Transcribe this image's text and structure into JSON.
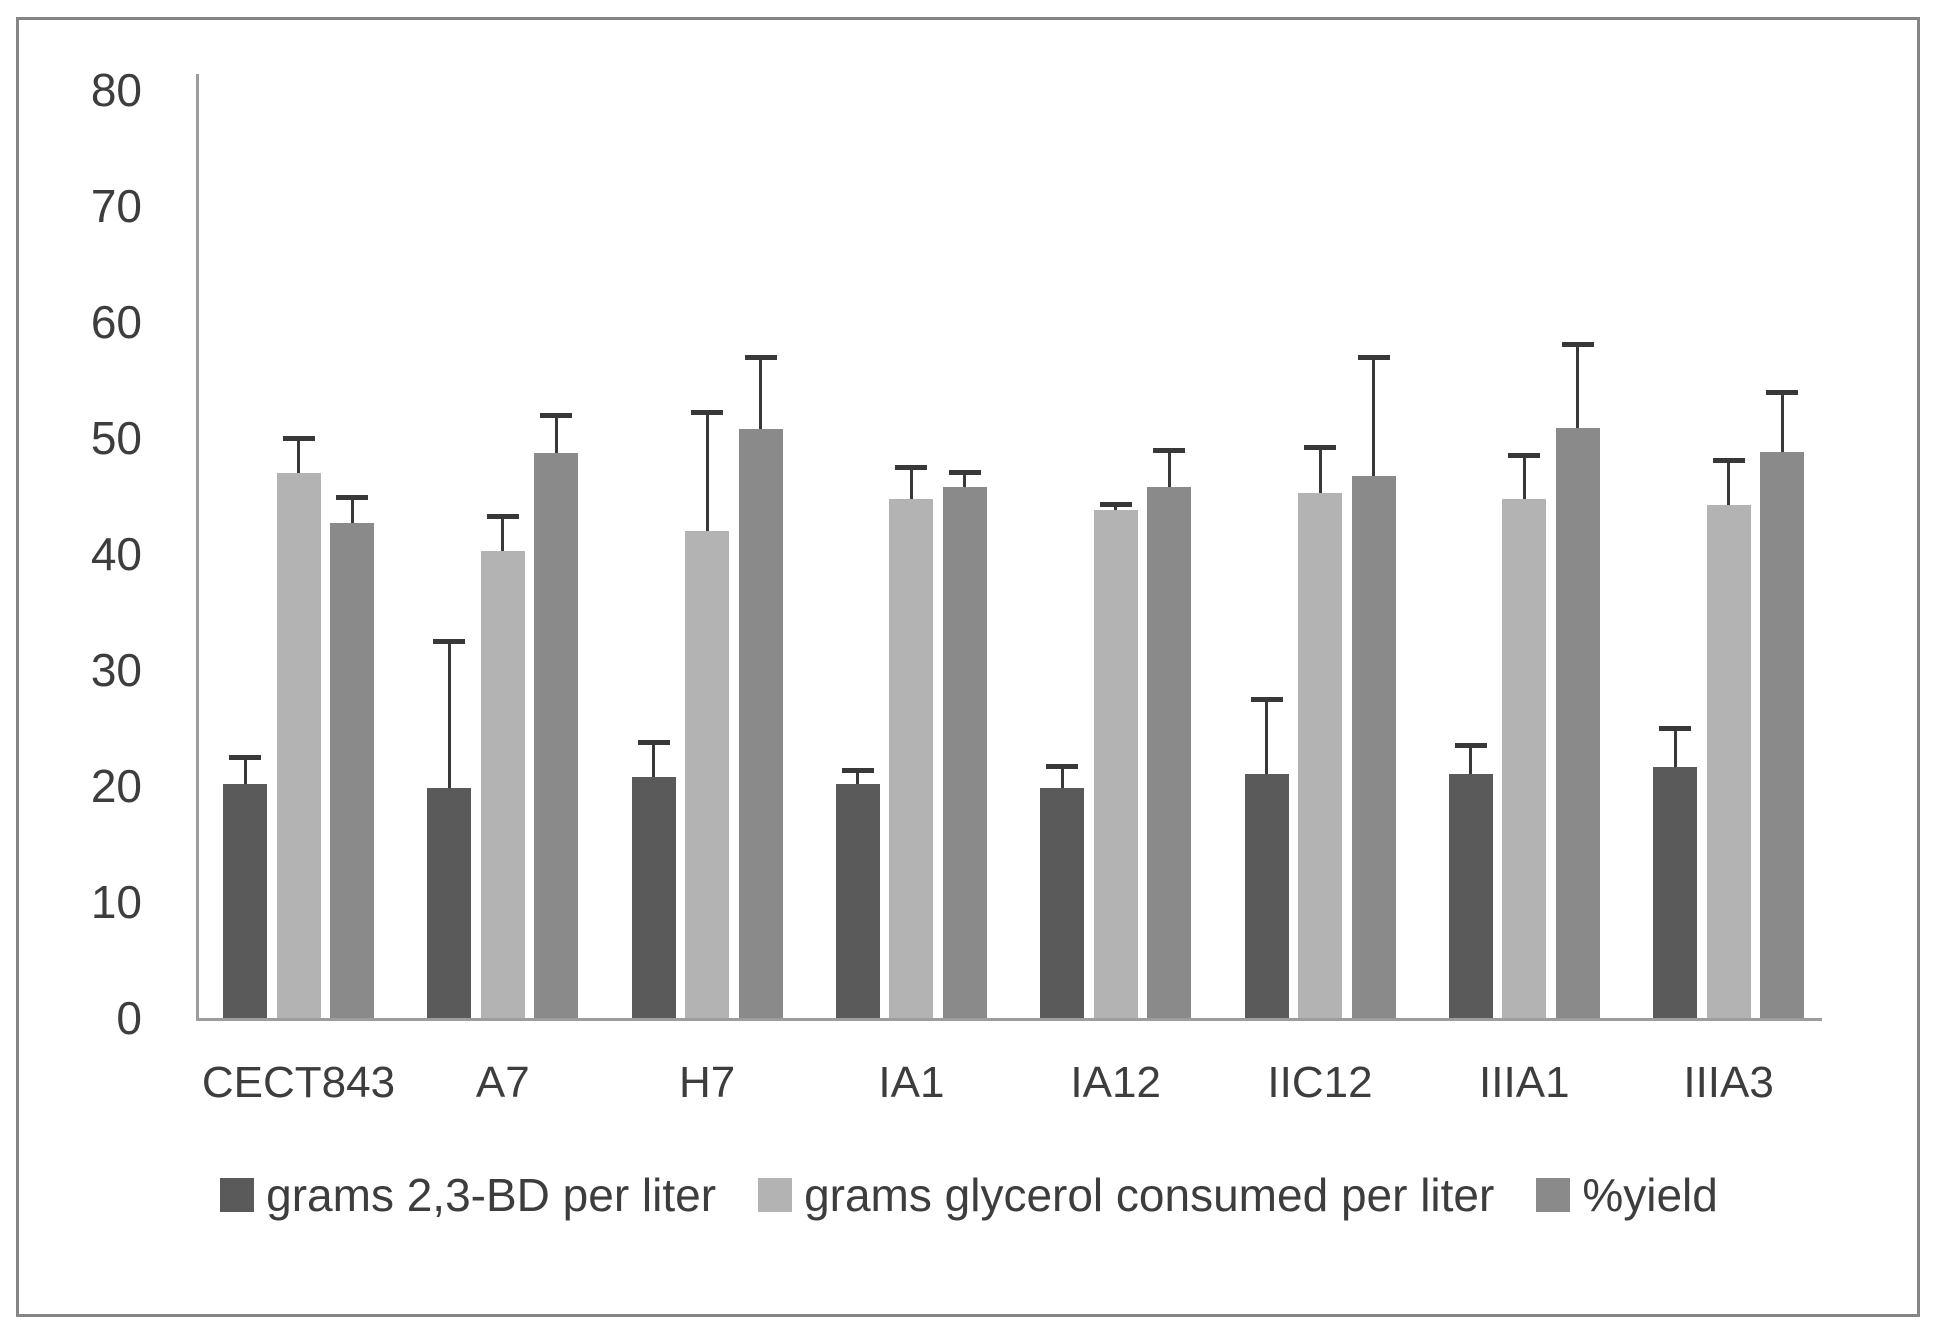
{
  "chart_data": {
    "type": "bar",
    "title": "",
    "xlabel": "",
    "ylabel": "",
    "categories": [
      "CECT843",
      "A7",
      "H7",
      "IA1",
      "IA12",
      "IIC12",
      "IIIA1",
      "IIIA3"
    ],
    "series": [
      {
        "name": "grams 2,3-BD per liter",
        "color": "#5a5a5a",
        "values": [
          20.2,
          19.8,
          20.8,
          20.2,
          19.8,
          21.0,
          21.0,
          21.6
        ],
        "errors_plus": [
          2.3,
          12.7,
          3.0,
          1.2,
          1.9,
          6.5,
          2.5,
          3.4
        ]
      },
      {
        "name": "grams glycerol consumed per liter",
        "color": "#b3b3b3",
        "values": [
          47.0,
          40.3,
          42.0,
          44.7,
          43.8,
          45.3,
          44.7,
          44.2
        ],
        "errors_plus": [
          3.0,
          3.0,
          10.2,
          2.8,
          0.5,
          3.9,
          3.8,
          3.9
        ]
      },
      {
        "name": "%yield",
        "color": "#8a8a8a",
        "values": [
          42.7,
          48.7,
          50.8,
          45.8,
          45.8,
          46.7,
          50.9,
          48.8
        ],
        "errors_plus": [
          2.2,
          3.3,
          6.2,
          1.3,
          3.2,
          10.3,
          7.2,
          5.2
        ]
      }
    ],
    "ylim": [
      0,
      80
    ],
    "yticks": [
      0,
      10,
      20,
      30,
      40,
      50,
      60,
      70,
      80
    ],
    "grid": false,
    "error_bars": "upper",
    "legend_position": "bottom",
    "axis_color": "#9d9d9d",
    "text_color": "#3d3d3d"
  }
}
